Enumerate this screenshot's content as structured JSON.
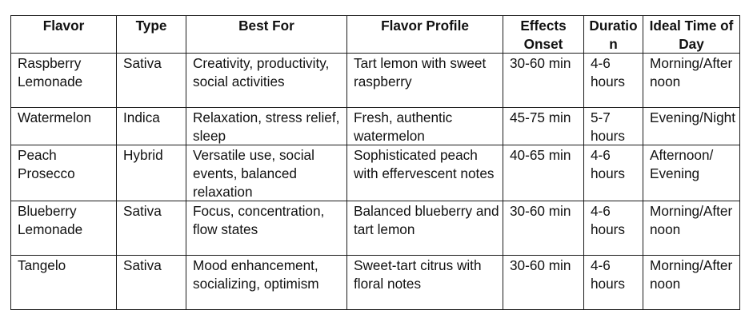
{
  "table": {
    "headers": [
      "Flavor",
      "Type",
      "Best For",
      "Flavor Profile",
      "Effects Onset",
      "Duration",
      "Ideal Time of Day"
    ],
    "rows": [
      [
        "Raspberry Lemonade",
        "Sativa",
        "Creativity, productivity, social activities",
        "Tart lemon with sweet raspberry",
        "30-60 min",
        "4-6 hours",
        "Morning/Afternoon"
      ],
      [
        "Watermelon",
        "Indica",
        "Relaxation, stress relief, sleep",
        "Fresh, authentic watermelon",
        "45-75 min",
        "5-7 hours",
        "Evening/Night"
      ],
      [
        "Peach Prosecco",
        "Hybrid",
        "Versatile use, social events, balanced relaxation",
        "Sophisticated peach with effervescent notes",
        "40-65 min",
        "4-6 hours",
        "Afternoon/ Evening"
      ],
      [
        "Blueberry Lemonade",
        "Sativa",
        "Focus, concentration, flow states",
        "Balanced blueberry and tart lemon",
        "30-60 min",
        "4-6 hours",
        "Morning/Afternoon"
      ],
      [
        "Tangelo",
        "Sativa",
        "Mood enhancement, socializing, optimism",
        "Sweet-tart citrus with floral notes",
        "30-60 min",
        "4-6 hours",
        "Morning/Afternoon"
      ]
    ]
  }
}
